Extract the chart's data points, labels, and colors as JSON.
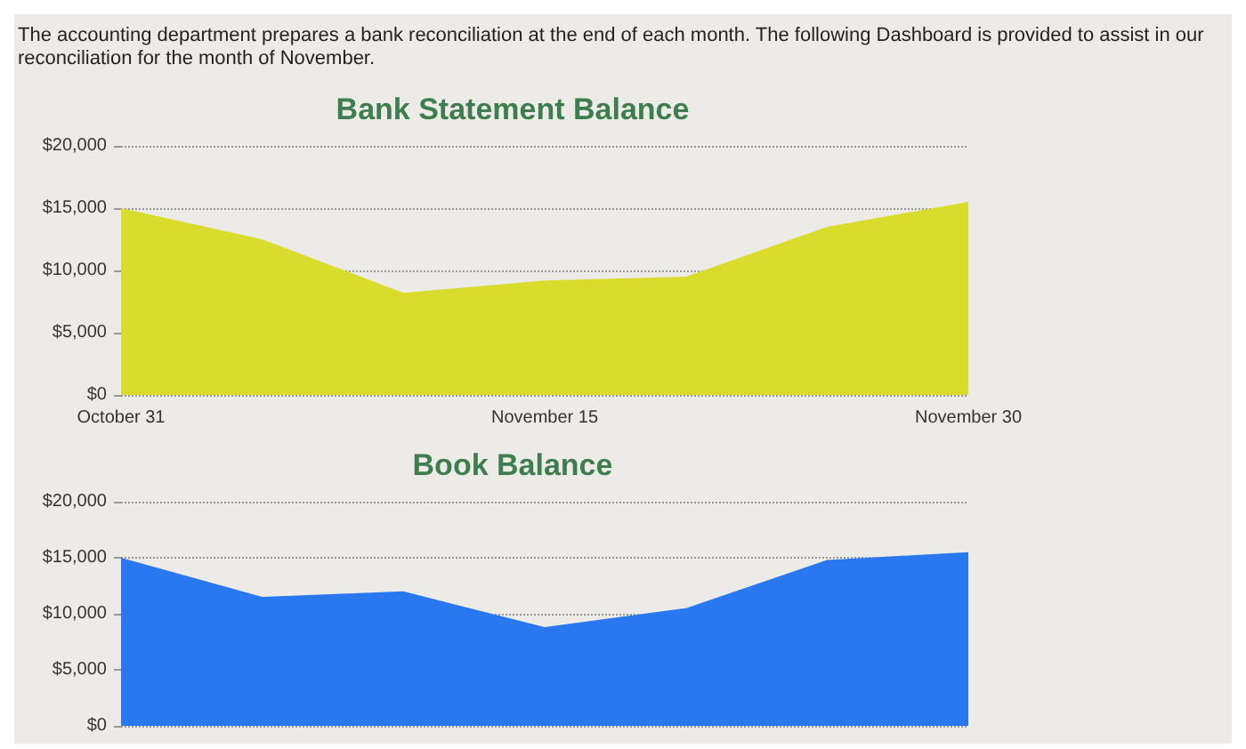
{
  "chart_data": [
    {
      "type": "area",
      "title": "Bank Statement Balance",
      "annotations": [
        "The accounting department prepares a bank reconciliation at the end of each month. The following Dashboard is provided to assist in our reconciliation for the month of November."
      ],
      "categories": [
        "October 31",
        null,
        null,
        "November 15",
        null,
        null,
        "November 30"
      ],
      "series": [
        {
          "color": "#d9dc2c",
          "values": [
            15000,
            12500,
            8200,
            9200,
            9500,
            13500,
            15500
          ]
        }
      ],
      "ylim": [
        0,
        20000
      ],
      "yticks": [
        {
          "value": 0,
          "label": "$0"
        },
        {
          "value": 5000,
          "label": "$5,000"
        },
        {
          "value": 10000,
          "label": "$10,000"
        },
        {
          "value": 15000,
          "label": "$15,000"
        },
        {
          "value": 20000,
          "label": "$20,000"
        }
      ],
      "grid": "y"
    },
    {
      "type": "area",
      "title": "Book Balance",
      "categories": [
        null,
        null,
        null,
        null,
        null,
        null,
        null
      ],
      "series": [
        {
          "color": "#2a78f0",
          "values": [
            15000,
            11500,
            12000,
            8800,
            10500,
            14800,
            15500
          ]
        }
      ],
      "ylim": [
        0,
        20000
      ],
      "yticks": [
        {
          "value": 0,
          "label": "$0"
        },
        {
          "value": 5000,
          "label": "$5,000"
        },
        {
          "value": 10000,
          "label": "$10,000"
        },
        {
          "value": 15000,
          "label": "$15,000"
        },
        {
          "value": 20000,
          "label": "$20,000"
        }
      ],
      "grid": "y",
      "tick_labels": "y"
    }
  ]
}
